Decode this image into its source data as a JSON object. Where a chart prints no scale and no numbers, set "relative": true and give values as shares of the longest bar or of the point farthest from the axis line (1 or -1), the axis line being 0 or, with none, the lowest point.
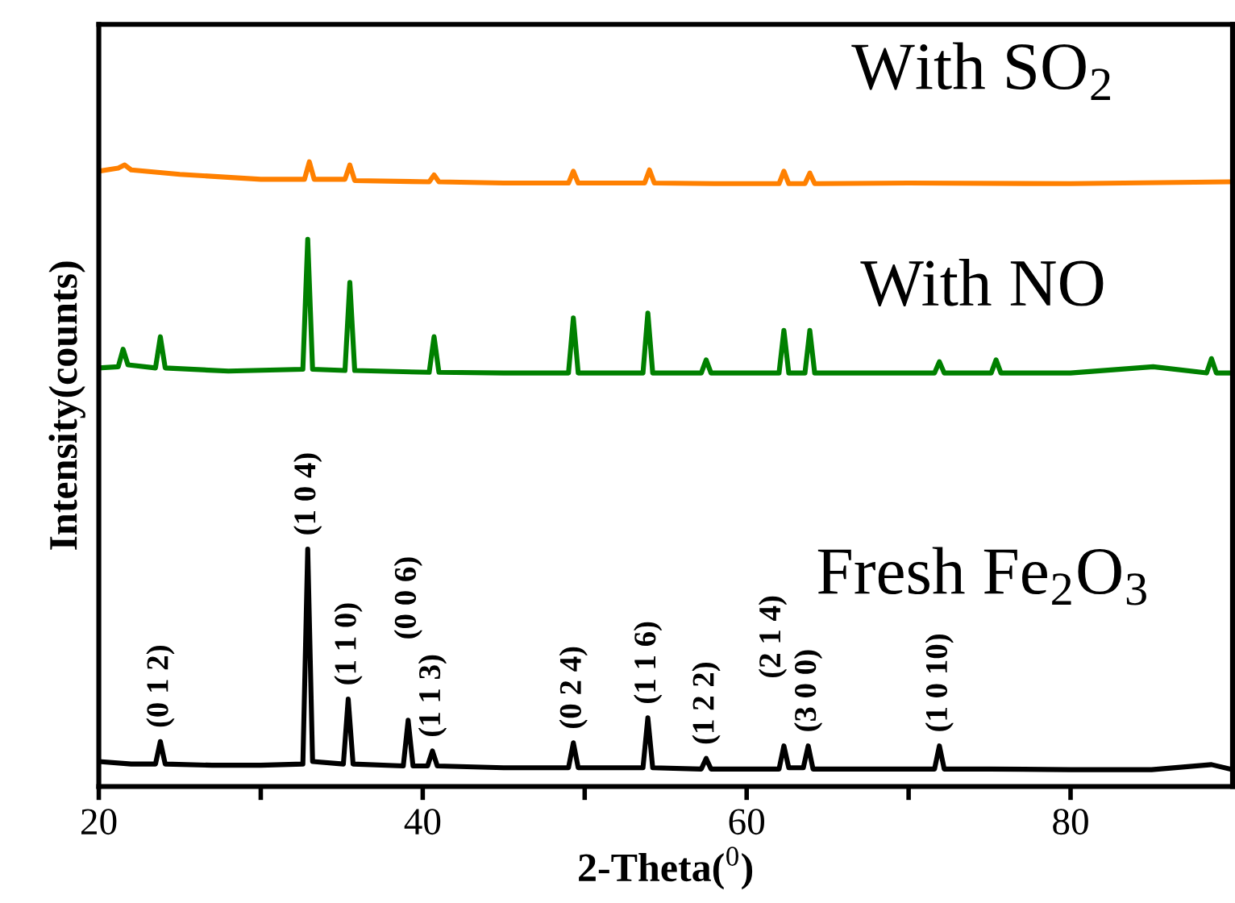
{
  "chart_data": {
    "type": "line",
    "relative": true,
    "xlabel": "2-Theta($^{0}$)",
    "ylabel": "Intensity(counts)",
    "xlim": [
      20,
      90
    ],
    "xticks": [
      20,
      {
        "value": 30,
        "label": null
      },
      40,
      {
        "value": 50,
        "label": null
      },
      60,
      {
        "value": 70,
        "label": null
      },
      80
    ],
    "tick_labels": "x",
    "grid": false,
    "legend": false,
    "marker": "none",
    "line_style": "solid",
    "series": [
      {
        "name": "Fresh Fe$_{2}$O$_{3}$",
        "color": "#000000",
        "x": [
          20,
          22,
          23.5,
          23.8,
          24.1,
          27,
          30,
          32.6,
          32.9,
          33.2,
          35.1,
          35.4,
          35.7,
          38.8,
          39.1,
          39.4,
          40.3,
          40.6,
          40.9,
          45,
          49.0,
          49.3,
          49.6,
          53.6,
          53.9,
          54.2,
          57.2,
          57.5,
          57.8,
          62.0,
          62.3,
          62.6,
          63.5,
          63.8,
          64.1,
          68,
          71.6,
          71.9,
          72.2,
          75,
          80,
          85,
          88.7,
          90
        ],
        "values": [
          0.04,
          0.036,
          0.036,
          0.072,
          0.036,
          0.034,
          0.034,
          0.036,
          0.38,
          0.04,
          0.036,
          0.14,
          0.036,
          0.033,
          0.106,
          0.033,
          0.033,
          0.057,
          0.033,
          0.03,
          0.03,
          0.07,
          0.03,
          0.03,
          0.11,
          0.03,
          0.028,
          0.045,
          0.028,
          0.028,
          0.065,
          0.03,
          0.03,
          0.065,
          0.028,
          0.028,
          0.028,
          0.065,
          0.028,
          0.028,
          0.027,
          0.027,
          0.035,
          0.027
        ]
      },
      {
        "name": "With NO",
        "color": "#008000",
        "x": [
          20,
          21.2,
          21.5,
          21.8,
          23.5,
          23.8,
          24.1,
          28,
          32.6,
          32.9,
          33.2,
          35.2,
          35.5,
          35.8,
          40.4,
          40.7,
          41.0,
          45,
          49.0,
          49.3,
          49.6,
          53.6,
          53.9,
          54.2,
          57.2,
          57.5,
          57.8,
          62.0,
          62.3,
          62.6,
          63.6,
          63.9,
          64.2,
          68,
          71.6,
          71.9,
          72.2,
          75.1,
          75.4,
          75.7,
          80,
          85.1,
          88.4,
          88.7,
          89,
          90
        ],
        "values": [
          0.67,
          0.672,
          0.7,
          0.675,
          0.67,
          0.72,
          0.67,
          0.665,
          0.668,
          0.876,
          0.668,
          0.666,
          0.807,
          0.666,
          0.663,
          0.72,
          0.663,
          0.662,
          0.662,
          0.75,
          0.662,
          0.662,
          0.758,
          0.662,
          0.662,
          0.683,
          0.662,
          0.662,
          0.73,
          0.662,
          0.662,
          0.73,
          0.662,
          0.662,
          0.662,
          0.68,
          0.662,
          0.662,
          0.683,
          0.662,
          0.662,
          0.672,
          0.662,
          0.685,
          0.662,
          0.662
        ]
      },
      {
        "name": "With SO$_{2}$",
        "color": "#ff8000",
        "x": [
          20,
          21.2,
          21.6,
          22,
          25,
          30,
          32.7,
          33.0,
          33.3,
          35.2,
          35.5,
          35.8,
          40.4,
          40.7,
          41.0,
          45,
          49.0,
          49.3,
          49.6,
          53.7,
          54.0,
          54.3,
          58,
          62.0,
          62.3,
          62.6,
          63.6,
          63.9,
          64.2,
          70,
          80,
          90
        ],
        "values": [
          0.985,
          0.99,
          0.995,
          0.987,
          0.98,
          0.972,
          0.972,
          1.0,
          0.972,
          0.972,
          0.995,
          0.97,
          0.968,
          0.979,
          0.968,
          0.966,
          0.966,
          0.985,
          0.966,
          0.966,
          0.987,
          0.966,
          0.965,
          0.965,
          0.985,
          0.965,
          0.965,
          0.982,
          0.965,
          0.966,
          0.965,
          0.968
        ]
      }
    ],
    "annotations": [
      {
        "text": "(0 1 2)",
        "x": 23.8,
        "y": 0.072
      },
      {
        "text": "(1 0 4)",
        "x": 32.9,
        "y": 0.38
      },
      {
        "text": "(1 1 0)",
        "x": 35.4,
        "y": 0.14
      },
      {
        "text": "(0 0 6)",
        "x": 39.1,
        "y": 0.106
      },
      {
        "text": "(1 1 3)",
        "x": 40.6,
        "y": 0.057
      },
      {
        "text": "(0 2 4)",
        "x": 49.3,
        "y": 0.07
      },
      {
        "text": "(1 1 6)",
        "x": 53.9,
        "y": 0.11
      },
      {
        "text": "(1 2 2)",
        "x": 57.5,
        "y": 0.045
      },
      {
        "text": "(2 1 4)",
        "x": 62.3,
        "y": 0.065
      },
      {
        "text": "(3 0 0)",
        "x": 63.8,
        "y": 0.065
      },
      {
        "text": "(1 0 10)",
        "x": 71.9,
        "y": 0.065
      }
    ]
  }
}
